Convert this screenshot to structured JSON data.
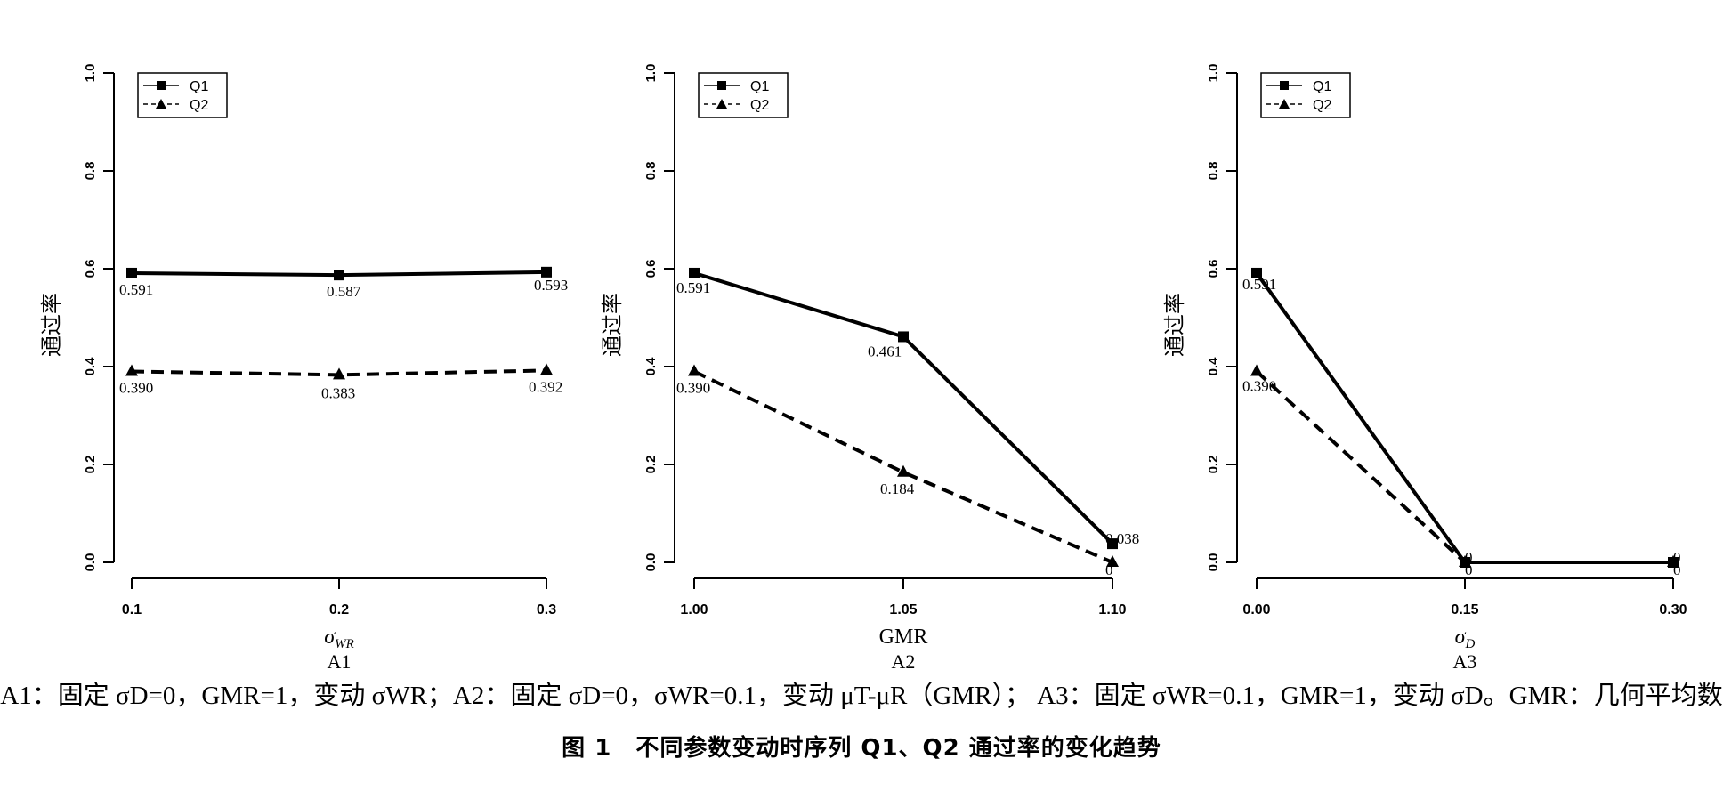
{
  "chart_data": [
    {
      "type": "line",
      "panel_label": "A1",
      "xlabel_symbol": "σ",
      "xlabel_sub": "WR",
      "ylabel": "通过率",
      "x_ticks": [
        "0.1",
        "0.2",
        "0.3"
      ],
      "x": [
        0.1,
        0.2,
        0.3
      ],
      "xlim": [
        0.1,
        0.3
      ],
      "ylim": [
        0.0,
        1.0
      ],
      "y_ticks": [
        "0.0",
        "0.2",
        "0.4",
        "0.6",
        "0.8",
        "1.0"
      ],
      "legend_position": "top-left",
      "series": [
        {
          "name": "Q1",
          "marker": "square",
          "line": "solid",
          "values": [
            0.591,
            0.587,
            0.593
          ],
          "labels": [
            "0.591",
            "0.587",
            "0.593"
          ]
        },
        {
          "name": "Q2",
          "marker": "triangle",
          "line": "dashed",
          "values": [
            0.39,
            0.383,
            0.392
          ],
          "labels": [
            "0.390",
            "0.383",
            "0.392"
          ]
        }
      ]
    },
    {
      "type": "line",
      "panel_label": "A2",
      "xlabel_symbol": "GMR",
      "xlabel_sub": "",
      "ylabel": "通过率",
      "x_ticks": [
        "1.00",
        "1.05",
        "1.10"
      ],
      "x": [
        1.0,
        1.05,
        1.1
      ],
      "xlim": [
        1.0,
        1.1
      ],
      "ylim": [
        0.0,
        1.0
      ],
      "y_ticks": [
        "0.0",
        "0.2",
        "0.4",
        "0.6",
        "0.8",
        "1.0"
      ],
      "legend_position": "top-left",
      "series": [
        {
          "name": "Q1",
          "marker": "square",
          "line": "solid",
          "values": [
            0.591,
            0.461,
            0.038
          ],
          "labels": [
            "0.591",
            "0.461",
            "0.038"
          ]
        },
        {
          "name": "Q2",
          "marker": "triangle",
          "line": "dashed",
          "values": [
            0.39,
            0.184,
            0
          ],
          "labels": [
            "0.390",
            "0.184",
            "0"
          ]
        }
      ]
    },
    {
      "type": "line",
      "panel_label": "A3",
      "xlabel_symbol": "σ",
      "xlabel_sub": "D",
      "ylabel": "通过率",
      "x_ticks": [
        "0.00",
        "0.15",
        "0.30"
      ],
      "x": [
        0.0,
        0.15,
        0.3
      ],
      "xlim": [
        0.0,
        0.3
      ],
      "ylim": [
        0.0,
        1.0
      ],
      "y_ticks": [
        "0.0",
        "0.2",
        "0.4",
        "0.6",
        "0.8",
        "1.0"
      ],
      "legend_position": "top-left",
      "series": [
        {
          "name": "Q1",
          "marker": "square",
          "line": "solid",
          "values": [
            0.591,
            0,
            0
          ],
          "labels": [
            "0.591",
            "0",
            "0"
          ]
        },
        {
          "name": "Q2",
          "marker": "triangle",
          "line": "dashed",
          "values": [
            0.39,
            0,
            0
          ],
          "labels": [
            "0.390",
            "0",
            "0"
          ]
        }
      ]
    }
  ],
  "caption": {
    "note": "A1：固定 σD=0，GMR=1，变动 σWR；A2：固定 σD=0，σWR=0.1，变动 μT-μR（GMR）； A3：固定 σWR=0.1，GMR=1，变动 σD。GMR：几何平均数",
    "title": "图 1　不同参数变动时序列 Q1、Q2 通过率的变化趋势"
  }
}
